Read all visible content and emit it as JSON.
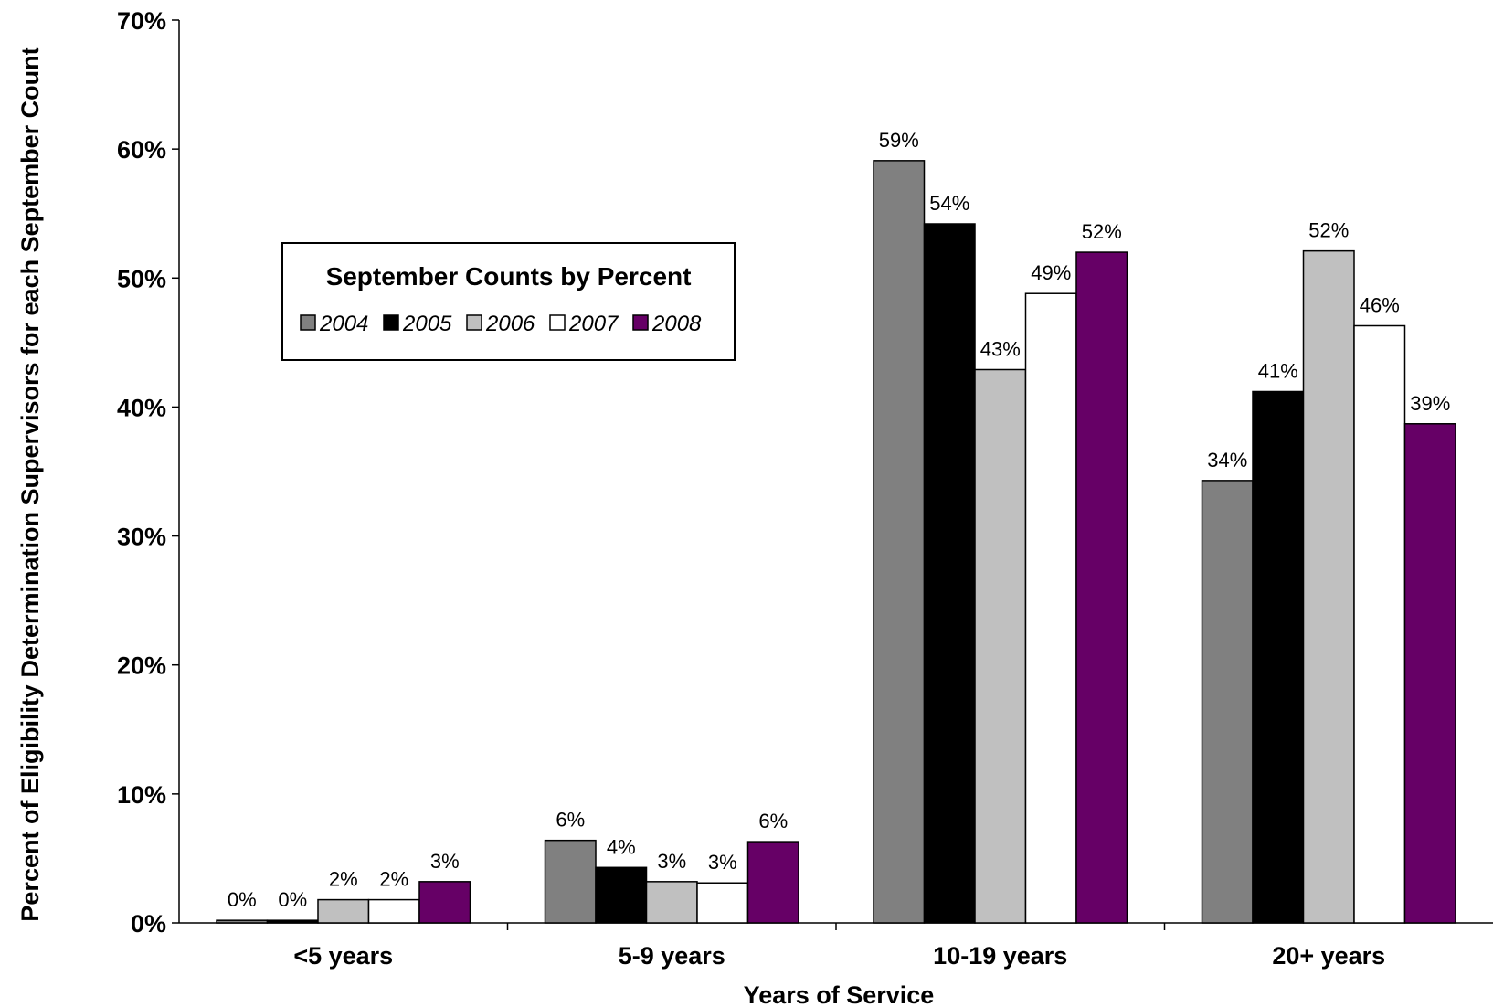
{
  "chart_data": {
    "type": "bar",
    "title": "",
    "xlabel": "Years of Service",
    "ylabel": "Percent of Eligibility Determination Supervisors for each September Count",
    "ylim": [
      0,
      70
    ],
    "y_ticks": [
      "0%",
      "10%",
      "20%",
      "30%",
      "40%",
      "50%",
      "60%",
      "70%"
    ],
    "y_tick_values": [
      0,
      10,
      20,
      30,
      40,
      50,
      60,
      70
    ],
    "categories": [
      "<5 years",
      "5-9 years",
      "10-19 years",
      "20+ years"
    ],
    "legend": {
      "title": "September Counts by Percent",
      "placement": "upper-left"
    },
    "grid": false,
    "series": [
      {
        "name": "2004",
        "color": "#808080",
        "values": [
          0.2,
          6.4,
          59.1,
          34.3
        ],
        "labels": [
          "0%",
          "6%",
          "59%",
          "34%"
        ]
      },
      {
        "name": "2005",
        "color": "#000000",
        "values": [
          0.2,
          4.3,
          54.2,
          41.2
        ],
        "labels": [
          "0%",
          "4%",
          "54%",
          "41%"
        ]
      },
      {
        "name": "2006",
        "color": "#c0c0c0",
        "values": [
          1.8,
          3.2,
          42.9,
          52.1
        ],
        "labels": [
          "2%",
          "3%",
          "43%",
          "52%"
        ]
      },
      {
        "name": "2007",
        "color": "#ffffff",
        "values": [
          1.8,
          3.1,
          48.8,
          46.3
        ],
        "labels": [
          "2%",
          "3%",
          "49%",
          "46%"
        ]
      },
      {
        "name": "2008",
        "color": "#660066",
        "values": [
          3.2,
          6.3,
          52.0,
          38.7
        ],
        "labels": [
          "3%",
          "6%",
          "52%",
          "39%"
        ]
      }
    ]
  }
}
